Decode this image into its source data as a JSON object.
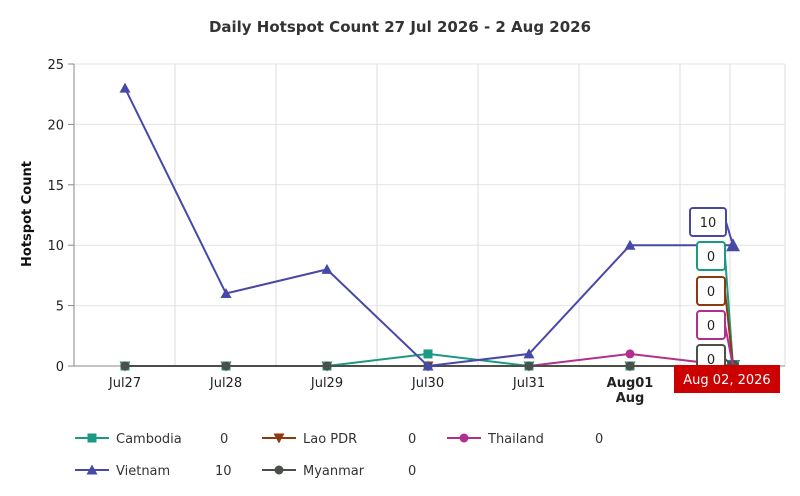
{
  "chart_data": {
    "type": "line",
    "title": "Daily Hotspot Count 27 Jul 2026 - 2 Aug 2026",
    "xlabel": "",
    "ylabel": "Hotspot Count",
    "categories": [
      "Jul27",
      "Jul28",
      "Jul29",
      "Jul30",
      "Jul31",
      "Aug01",
      "Aug 02, 2026"
    ],
    "x_tick_labels": [
      "Jul27",
      "Jul28",
      "Jul29",
      "Jul30",
      "Jul31",
      "Aug01"
    ],
    "x_month_label": "Aug",
    "ylim": [
      0,
      25
    ],
    "yticks": [
      0,
      5,
      10,
      15,
      20,
      25
    ],
    "grid": true,
    "legend_position": "bottom",
    "tooltip_date": "Aug 02, 2026",
    "series": [
      {
        "name": "Cambodia",
        "color": "#1a9a80",
        "marker": "square",
        "values": [
          0,
          0,
          0,
          1,
          0,
          0,
          0
        ],
        "latest": "0"
      },
      {
        "name": "Lao PDR",
        "color": "#8b3a0e",
        "marker": "triangle-down",
        "values": [
          0,
          0,
          0,
          0,
          0,
          0,
          0
        ],
        "latest": "0"
      },
      {
        "name": "Thailand",
        "color": "#b0308f",
        "marker": "circle",
        "values": [
          0,
          0,
          0,
          0,
          0,
          1,
          0
        ],
        "latest": "0"
      },
      {
        "name": "Vietnam",
        "color": "#4848a8",
        "marker": "triangle-up",
        "values": [
          23,
          6,
          8,
          0,
          1,
          10,
          10
        ],
        "latest": "10"
      },
      {
        "name": "Myanmar",
        "color": "#4a4f4a",
        "marker": "circle",
        "values": [
          0,
          0,
          0,
          0,
          0,
          0,
          0
        ],
        "latest": "0"
      }
    ]
  }
}
